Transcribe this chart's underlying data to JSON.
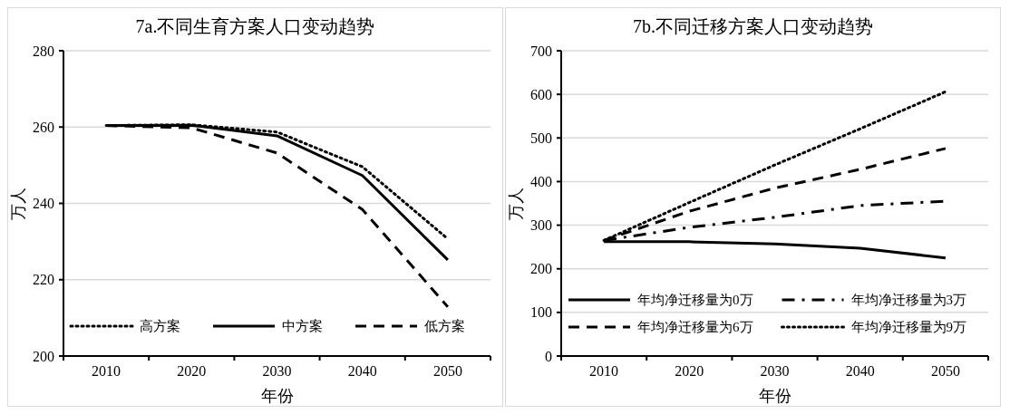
{
  "chart_data": [
    {
      "type": "line",
      "title": "7a.不同生育方案人口变动趋势",
      "xlabel": "年份",
      "ylabel": "万人",
      "categories": [
        "2010",
        "2020",
        "2030",
        "2040",
        "2050"
      ],
      "ylim": [
        200,
        280
      ],
      "yticks": [
        200,
        220,
        240,
        260,
        280
      ],
      "grid": "y",
      "legend": "bottom",
      "marker": "none",
      "series": [
        {
          "name": "高方案",
          "color": "#000000",
          "line_style": "dotted",
          "values": [
            260.4,
            260.6,
            258.7,
            249.6,
            230.7
          ]
        },
        {
          "name": "中方案",
          "color": "#000000",
          "line_style": "solid",
          "values": [
            260.4,
            260.5,
            257.7,
            247.3,
            225.2
          ]
        },
        {
          "name": "低方案",
          "color": "#000000",
          "line_style": "dashed",
          "values": [
            260.4,
            259.8,
            253.2,
            238.4,
            212.9
          ]
        }
      ]
    },
    {
      "type": "line",
      "title": "7b.不同迁移方案人口变动趋势",
      "xlabel": "年份",
      "ylabel": "万人",
      "categories": [
        "2010",
        "2020",
        "2030",
        "2040",
        "2050"
      ],
      "ylim": [
        0,
        700
      ],
      "yticks": [
        0,
        100,
        200,
        300,
        400,
        500,
        600,
        700
      ],
      "grid": "y",
      "legend": "bottom",
      "marker": "none",
      "series": [
        {
          "name": "年均净迁移量为0万",
          "color": "#000000",
          "line_style": "solid",
          "values": [
            262,
            262,
            257,
            247,
            225
          ]
        },
        {
          "name": "年均净迁移量为3万",
          "color": "#000000",
          "line_style": "dashdot",
          "values": [
            265,
            295,
            318,
            345,
            355
          ]
        },
        {
          "name": "年均净迁移量为6万",
          "color": "#000000",
          "line_style": "dashed",
          "values": [
            265,
            332,
            385,
            428,
            476
          ]
        },
        {
          "name": "年均净迁移量为9万",
          "color": "#000000",
          "line_style": "dotted",
          "values": [
            265,
            352,
            438,
            521,
            606
          ]
        }
      ]
    }
  ]
}
